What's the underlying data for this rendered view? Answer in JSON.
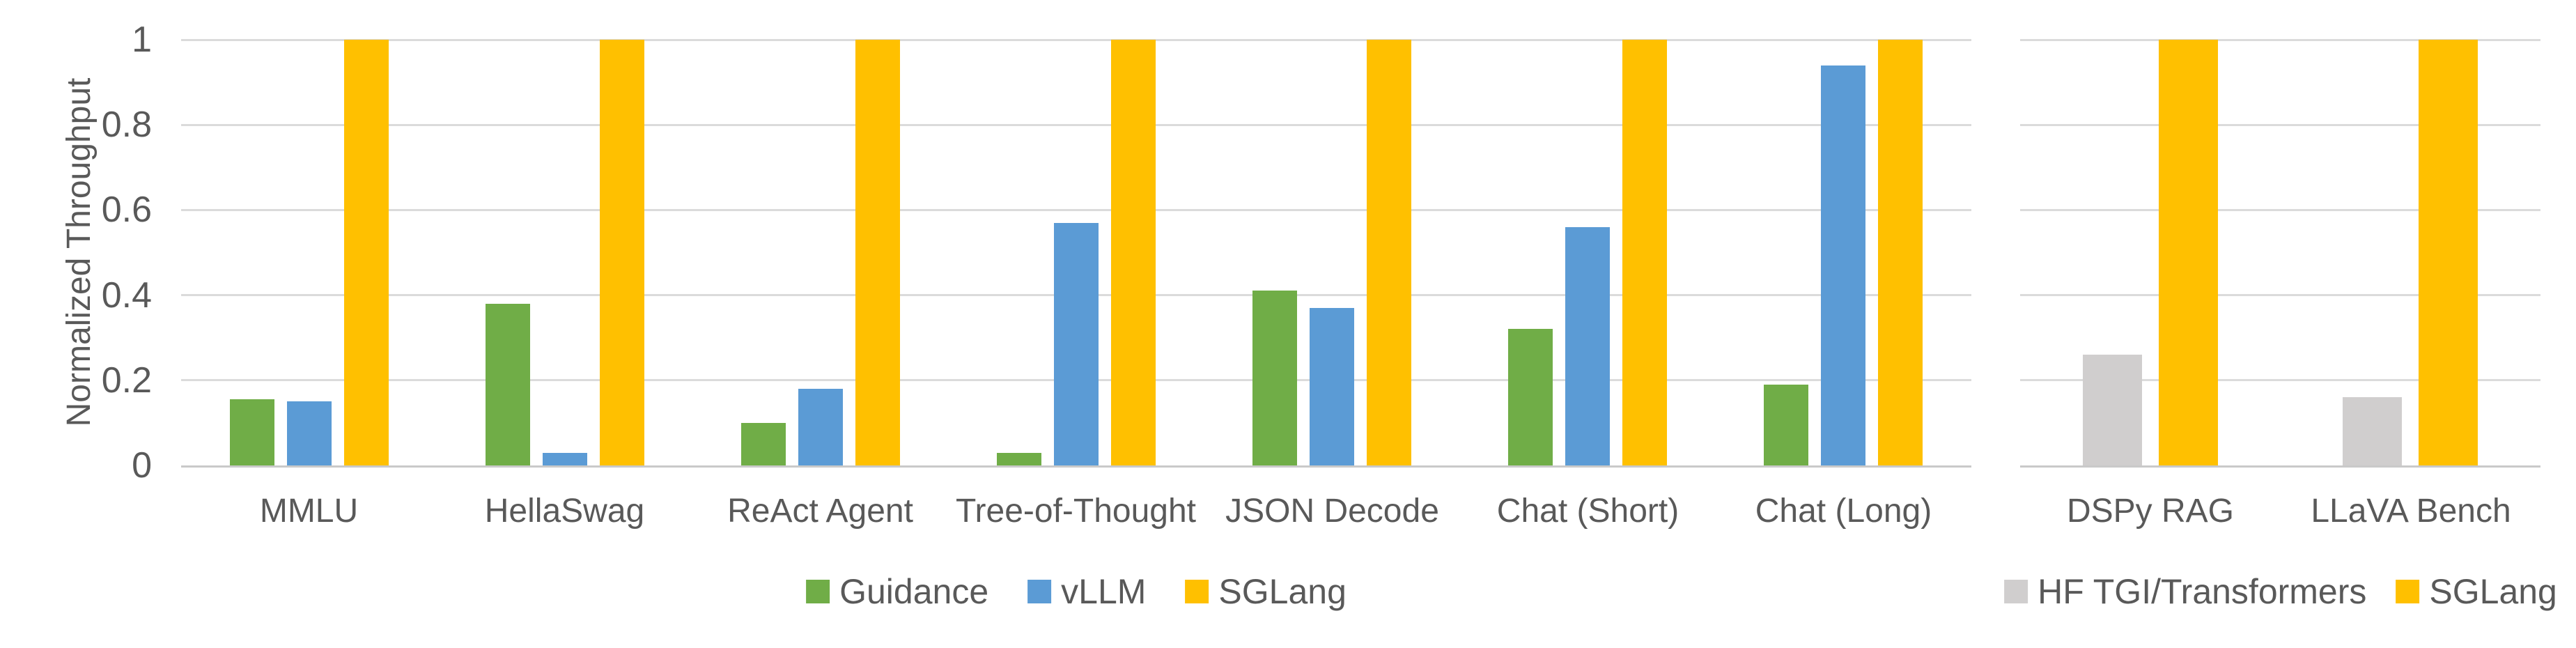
{
  "page": {
    "background": "#FFFFFF",
    "text_color": "#595959",
    "grid_color": "#DBDBDB",
    "axis_line_color": "#C9C9C9"
  },
  "chart_data": [
    {
      "type": "bar",
      "title": "",
      "xlabel": "",
      "ylabel": "Normalized Throughput",
      "ylim": [
        0,
        1
      ],
      "yticks": [
        0,
        0.2,
        0.4,
        0.6,
        0.8,
        1
      ],
      "ytick_labels": [
        "0",
        "0.2",
        "0.4",
        "0.6",
        "0.8",
        "1"
      ],
      "grid": true,
      "legend_position": "bottom",
      "categories": [
        "MMLU",
        "HellaSwag",
        "ReAct Agent",
        "Tree-of-Thought",
        "JSON Decode",
        "Chat (Short)",
        "Chat (Long)"
      ],
      "series": [
        {
          "name": "Guidance",
          "color": "#70AD47",
          "values": [
            0.155,
            0.38,
            0.1,
            0.03,
            0.41,
            0.32,
            0.19
          ]
        },
        {
          "name": "vLLM",
          "color": "#5B9BD5",
          "values": [
            0.15,
            0.03,
            0.18,
            0.57,
            0.37,
            0.56,
            0.94
          ]
        },
        {
          "name": "SGLang",
          "color": "#FFC000",
          "values": [
            1.0,
            1.0,
            1.0,
            1.0,
            1.0,
            1.0,
            1.0
          ]
        }
      ]
    },
    {
      "type": "bar",
      "title": "",
      "xlabel": "",
      "ylabel": "",
      "ylim": [
        0,
        1
      ],
      "yticks": [
        0,
        0.2,
        0.4,
        0.6,
        0.8,
        1
      ],
      "ytick_labels": [],
      "grid": true,
      "legend_position": "bottom",
      "categories": [
        "DSPy RAG",
        "LLaVA Bench"
      ],
      "series": [
        {
          "name": "HF TGI/Transformers",
          "color": "#D0CECE",
          "values": [
            0.26,
            0.16
          ]
        },
        {
          "name": "SGLang",
          "color": "#FFC000",
          "values": [
            1.0,
            1.0
          ]
        }
      ]
    }
  ]
}
